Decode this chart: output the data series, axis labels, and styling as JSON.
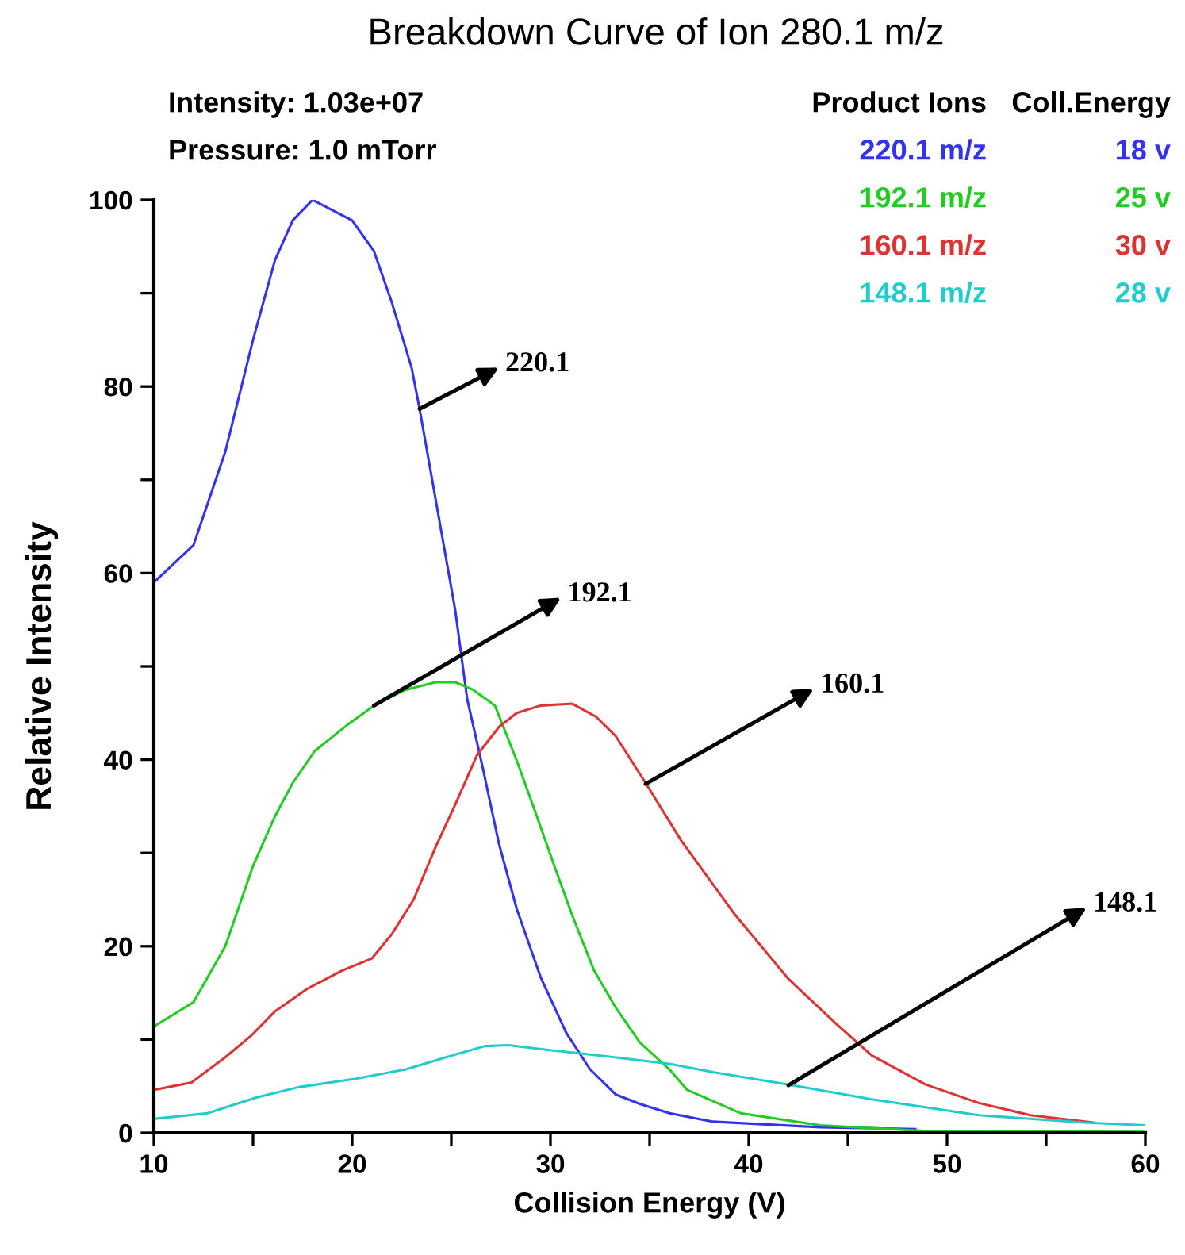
{
  "chart_data": {
    "type": "line",
    "title": "Breakdown Curve of Ion 280.1 m/z",
    "xlabel": "Collision Energy (V)",
    "ylabel": "Relative Intensity",
    "legend_title": "Product Ions",
    "legend": "top right",
    "grid": false,
    "marker": "none",
    "line_style": "solid",
    "xlim": [
      10,
      60
    ],
    "ylim": [
      0,
      100
    ],
    "xticks": [
      10,
      {
        "value": 15,
        "label": null
      },
      20,
      {
        "value": 25,
        "label": null
      },
      30,
      {
        "value": 35,
        "label": null
      },
      40,
      {
        "value": 45,
        "label": null
      },
      50,
      {
        "value": 55,
        "label": null
      },
      60
    ],
    "yticks": [
      0,
      {
        "value": 10,
        "label": null
      },
      20,
      {
        "value": 30,
        "label": null
      },
      40,
      {
        "value": 50,
        "label": null
      },
      60,
      {
        "value": 70,
        "label": null
      },
      80,
      {
        "value": 90,
        "label": null
      },
      100
    ],
    "series": [
      {
        "name": "220.1 m/z",
        "color": "#3333ee",
        "x": [
          10,
          12,
          13.6,
          15,
          16.1,
          17,
          18,
          20,
          21.1,
          22,
          23,
          23.4,
          24.2,
          25.2,
          25.8,
          26.6,
          27.4,
          28.3,
          29.5,
          30.8,
          32,
          33.3,
          34.5,
          36,
          38.2,
          43.6,
          48.4
        ],
        "values": [
          59,
          63,
          73,
          85,
          93.5,
          97.8,
          100,
          97.8,
          94.5,
          89,
          82,
          77.6,
          68,
          56,
          46.5,
          39,
          31,
          24,
          16.7,
          10.7,
          6.8,
          4.1,
          3.1,
          2.1,
          1.2,
          0.6,
          0.4
        ]
      },
      {
        "name": "192.1 m/z",
        "color": "#22cc22",
        "x": [
          10,
          12,
          13.6,
          15,
          16.1,
          17,
          18.1,
          19.8,
          21.1,
          22.7,
          24.2,
          25.2,
          26.1,
          27.2,
          28.3,
          29.2,
          30.2,
          31.1,
          32.2,
          33.3,
          34.5,
          36,
          36.9,
          39.6,
          43.6,
          48.9,
          60
        ],
        "values": [
          11.4,
          14,
          20,
          28.6,
          33.9,
          37.5,
          40.9,
          43.8,
          45.8,
          47.5,
          48.3,
          48.3,
          47.5,
          45.8,
          39.9,
          34.6,
          28.6,
          23.3,
          17.4,
          13.4,
          9.7,
          6.8,
          4.6,
          2.1,
          0.8,
          0.2,
          0.1
        ]
      },
      {
        "name": "160.1 m/z",
        "color": "#dd3333",
        "x": [
          10,
          11.9,
          13.6,
          14.9,
          16.1,
          17.7,
          19.5,
          21,
          22,
          23.1,
          24.2,
          25.2,
          26.3,
          27.4,
          28.3,
          29.5,
          31.1,
          32.3,
          33.3,
          34.8,
          36.6,
          39.3,
          42,
          44.4,
          46.2,
          48.9,
          51.6,
          54.2,
          57.4
        ],
        "values": [
          4.6,
          5.4,
          8.1,
          10.4,
          13,
          15.4,
          17.4,
          18.7,
          21.3,
          25,
          30.6,
          35.2,
          40.5,
          43.5,
          45,
          45.8,
          46,
          44.6,
          42.5,
          37.5,
          31.3,
          23.4,
          16.5,
          11.7,
          8.3,
          5.2,
          3.2,
          1.9,
          1.1
        ]
      },
      {
        "name": "148.1 m/z",
        "color": "#22cccc",
        "x": [
          10,
          12.7,
          15.2,
          17.3,
          20.2,
          22.7,
          25.2,
          26.7,
          27.9,
          29.8,
          32,
          36,
          38.2,
          42.2,
          46.2,
          51.6,
          56.9,
          60
        ],
        "values": [
          1.5,
          2.1,
          3.8,
          4.9,
          5.8,
          6.8,
          8.4,
          9.3,
          9.4,
          8.9,
          8.4,
          7.4,
          6.5,
          5.1,
          3.6,
          1.9,
          1.1,
          0.8
        ]
      }
    ],
    "annotations": [
      {
        "text": "220.1",
        "x": 23.4,
        "y": 77.6
      },
      {
        "text": "192.1",
        "x": 21.1,
        "y": 45.8
      },
      {
        "text": "160.1",
        "x": 34.8,
        "y": 37.4
      },
      {
        "text": "148.1",
        "x": 42,
        "y": 5.1
      },
      "Intensity: 1.03e+07",
      "Pressure: 1.0 mTorr",
      "Coll.Energy",
      "18 v",
      "25 v",
      "30 v",
      "28 v"
    ]
  }
}
